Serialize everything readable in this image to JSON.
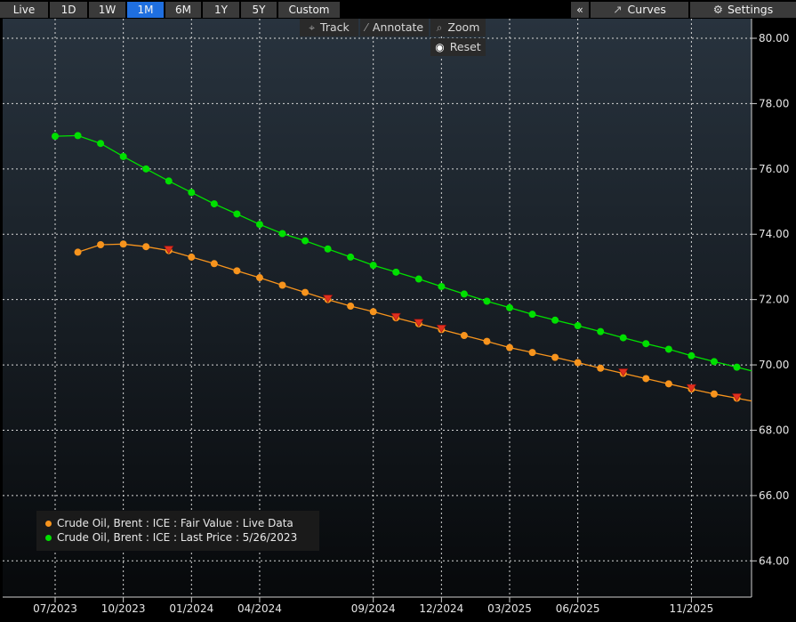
{
  "toolbar": {
    "ranges": [
      {
        "label": "Live",
        "active": false
      },
      {
        "label": "1D",
        "active": false
      },
      {
        "label": "1W",
        "active": false
      },
      {
        "label": "1M",
        "active": true
      },
      {
        "label": "6M",
        "active": false
      },
      {
        "label": "1Y",
        "active": false
      },
      {
        "label": "5Y",
        "active": false
      },
      {
        "label": "Custom",
        "active": false
      }
    ],
    "collapse_label": "«",
    "curves_label": "Curves",
    "settings_label": "Settings"
  },
  "tools": {
    "track_label": "Track",
    "annotate_label": "Annotate",
    "zoom_label": "Zoom",
    "reset_label": "Reset"
  },
  "chart_data": {
    "type": "line",
    "x_tick_labels": [
      "07/2023",
      "10/2023",
      "01/2024",
      "04/2024",
      "09/2024",
      "12/2024",
      "03/2025",
      "06/2025",
      "11/2025"
    ],
    "x_tick_months": [
      0,
      3,
      6,
      9,
      14,
      17,
      20,
      23,
      28
    ],
    "y_tick_labels": [
      "64.00",
      "66.00",
      "68.00",
      "70.00",
      "72.00",
      "74.00",
      "76.00",
      "78.00",
      "80.00"
    ],
    "ylim": [
      63.0,
      80.1
    ],
    "grid": true,
    "legend_position": "bottom-left",
    "series": [
      {
        "name": "Crude Oil, Brent : ICE : Fair Value : Live Data",
        "color": "#f7941d",
        "x_months": [
          1,
          2,
          3,
          4,
          5,
          6,
          7,
          8,
          9,
          10,
          11,
          12,
          13,
          14,
          15,
          16,
          17,
          18,
          19,
          20,
          21,
          22,
          23,
          24,
          25,
          26,
          27,
          28,
          29,
          30
        ],
        "values": [
          73.45,
          73.68,
          73.7,
          73.62,
          73.5,
          73.3,
          73.1,
          72.88,
          72.67,
          72.44,
          72.22,
          72.0,
          71.8,
          71.63,
          71.44,
          71.26,
          71.08,
          70.9,
          70.72,
          70.53,
          70.38,
          70.23,
          70.07,
          69.9,
          69.74,
          69.58,
          69.42,
          69.26,
          69.11,
          68.98
        ],
        "flag_months": [
          5,
          12,
          15,
          16,
          17,
          25,
          28,
          30
        ]
      },
      {
        "name": "Crude Oil, Brent : ICE : Last Price : 5/26/2023",
        "color": "#00e000",
        "x_months": [
          0,
          1,
          2,
          3,
          4,
          5,
          6,
          7,
          8,
          9,
          10,
          11,
          12,
          13,
          14,
          15,
          16,
          17,
          18,
          19,
          20,
          21,
          22,
          23,
          24,
          25,
          26,
          27,
          28,
          29,
          30
        ],
        "values": [
          77.0,
          77.02,
          76.78,
          76.38,
          76.0,
          75.63,
          75.28,
          74.93,
          74.62,
          74.3,
          74.02,
          73.8,
          73.55,
          73.3,
          73.05,
          72.84,
          72.63,
          72.4,
          72.17,
          71.95,
          71.75,
          71.55,
          71.37,
          71.2,
          71.02,
          70.83,
          70.65,
          70.48,
          70.28,
          70.1,
          69.93
        ]
      }
    ]
  }
}
